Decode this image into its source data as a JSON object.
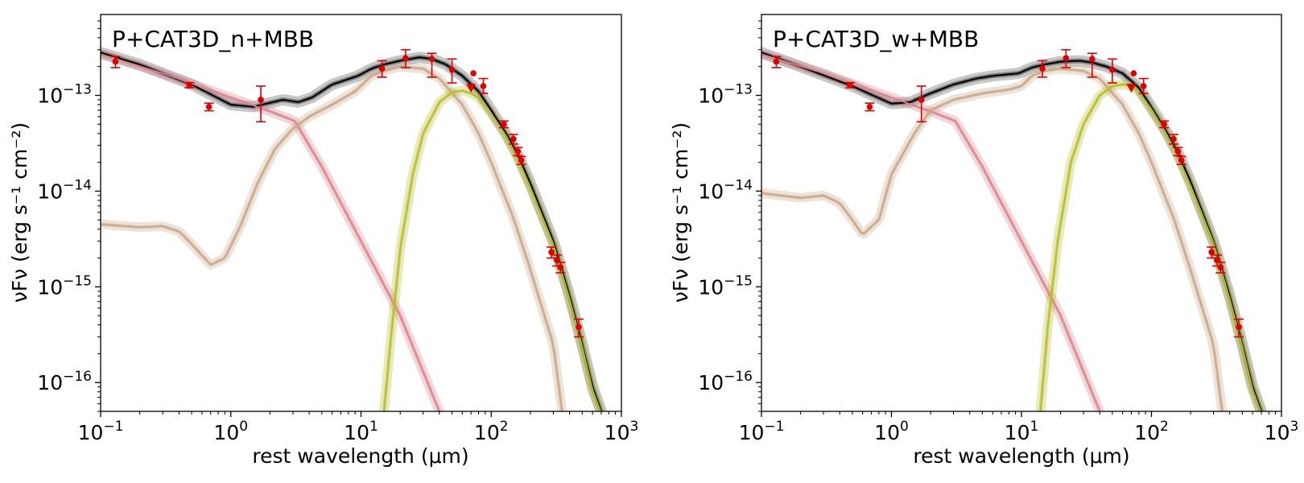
{
  "chart_data": [
    {
      "type": "line",
      "title": "P+CAT3D_n+MBB",
      "xlabel": "rest wavelength (μm)",
      "ylabel": "νFν (erg s⁻¹ cm⁻²)",
      "xscale": "log",
      "yscale": "log",
      "xlim": [
        0.1,
        1000
      ],
      "ylim": [
        5e-17,
        7e-13
      ],
      "grid": false,
      "xticks": [
        {
          "base": "10",
          "exp": "−1",
          "value": 0.1
        },
        {
          "base": "10",
          "exp": "0",
          "value": 1
        },
        {
          "base": "10",
          "exp": "1",
          "value": 10
        },
        {
          "base": "10",
          "exp": "2",
          "value": 100
        },
        {
          "base": "10",
          "exp": "3",
          "value": 1000
        }
      ],
      "yticks": [
        {
          "base": "10",
          "exp": "−16",
          "value": 1e-16
        },
        {
          "base": "10",
          "exp": "−15",
          "value": 1e-15
        },
        {
          "base": "10",
          "exp": "−14",
          "value": 1e-14
        },
        {
          "base": "10",
          "exp": "−13",
          "value": 1e-13
        }
      ],
      "series": [
        {
          "role": "total",
          "color": "#000000",
          "x": [
            0.1,
            0.2,
            0.5,
            1.0,
            1.5,
            2.5,
            3.3,
            4.2,
            6,
            9.5,
            12,
            15,
            20,
            28,
            35,
            45,
            60,
            80,
            100,
            130,
            160,
            200,
            300,
            400,
            500,
            600,
            700
          ],
          "y": [
            2.8e-13,
            2.1e-13,
            1.3e-13,
            8e-14,
            7.6e-14,
            9e-14,
            8.5e-14,
            9.5e-14,
            1.3e-13,
            1.6e-13,
            1.9e-13,
            2.1e-13,
            2.3e-13,
            2.5e-13,
            2.4e-13,
            2.1e-13,
            1.6e-13,
            1.1e-13,
            7e-14,
            4e-14,
            2.4e-14,
            1.2e-14,
            3e-15,
            8e-16,
            2.5e-16,
            9e-17,
            5e-17
          ]
        },
        {
          "role": "agn-disk",
          "color": "#d9878f",
          "x": [
            0.1,
            0.3,
            1,
            2,
            3.1,
            5,
            10,
            20,
            30,
            40
          ],
          "y": [
            2.7e-13,
            1.7e-13,
            9.5e-14,
            6.8e-14,
            5.4e-14,
            1.8e-14,
            3e-15,
            5e-16,
            1.3e-16,
            5e-17
          ]
        },
        {
          "role": "torus",
          "color": "#c8a888",
          "x": [
            0.1,
            0.2,
            0.3,
            0.4,
            0.5,
            0.7,
            0.9,
            1.2,
            1.6,
            2.2,
            3,
            4,
            6,
            9,
            12,
            15,
            20,
            30,
            40,
            60,
            80,
            100,
            150,
            200,
            300,
            350
          ],
          "y": [
            4.5e-15,
            4.2e-15,
            4.3e-15,
            3.8e-15,
            2.8e-15,
            1.7e-15,
            2e-15,
            4.5e-15,
            1.2e-14,
            2.8e-14,
            4.5e-14,
            6e-14,
            8e-14,
            1.1e-13,
            1.6e-13,
            1.8e-13,
            2e-13,
            1.9e-13,
            1.5e-13,
            8e-14,
            4e-14,
            2e-14,
            5e-15,
            1.5e-15,
            2.5e-16,
            5e-17
          ]
        },
        {
          "role": "mbb",
          "color": "#b8be2a",
          "x": [
            15,
            17,
            20,
            25,
            30,
            40,
            50,
            60,
            70,
            80,
            100,
            130,
            160,
            200,
            300,
            400,
            500,
            600,
            700
          ],
          "y": [
            5e-17,
            3e-16,
            2.5e-15,
            1.5e-14,
            4e-14,
            8.5e-14,
            1.08e-13,
            1.12e-13,
            1.05e-13,
            9.5e-14,
            6.5e-14,
            3.8e-14,
            2.2e-14,
            1.1e-14,
            2.8e-15,
            7.5e-16,
            2.4e-16,
            8.5e-17,
            4.8e-17
          ]
        }
      ],
      "points": [
        {
          "x": 0.13,
          "y": 2.25e-13,
          "err": [
            1.95e-13,
            2.55e-13
          ]
        },
        {
          "x": 0.48,
          "y": 1.28e-13,
          "err": [
            1.2e-13,
            1.36e-13
          ]
        },
        {
          "x": 0.68,
          "y": 7.6e-14,
          "err": [
            6.9e-14,
            8.3e-14
          ]
        },
        {
          "x": 1.7,
          "y": 9e-14,
          "err": [
            5.3e-14,
            1.25e-13
          ]
        },
        {
          "x": 14.5,
          "y": 1.9e-13,
          "err": [
            1.55e-13,
            2.3e-13
          ]
        },
        {
          "x": 22,
          "y": 2.45e-13,
          "err": [
            1.95e-13,
            3e-13
          ]
        },
        {
          "x": 35,
          "y": 2.4e-13,
          "err": [
            1.55e-13,
            2.75e-13
          ]
        },
        {
          "x": 50,
          "y": 1.85e-13,
          "err": [
            1.35e-13,
            2.4e-13
          ]
        },
        {
          "x": 73,
          "y": 1.7e-13
        },
        {
          "x": 87,
          "y": 1.25e-13,
          "err": [
            1.05e-13,
            1.5e-13
          ]
        },
        {
          "x": 125,
          "y": 5e-14,
          "err": [
            4.6e-14,
            5.4e-14
          ]
        },
        {
          "x": 148,
          "y": 3.5e-14,
          "err": [
            3.1e-14,
            3.9e-14
          ]
        },
        {
          "x": 160,
          "y": 2.6e-14,
          "err": [
            2.35e-14,
            2.85e-14
          ]
        },
        {
          "x": 170,
          "y": 2.1e-14,
          "err": [
            1.9e-14,
            2.3e-14
          ]
        },
        {
          "x": 290,
          "y": 2.3e-15,
          "err": [
            2e-15,
            2.6e-15
          ]
        },
        {
          "x": 320,
          "y": 1.9e-15,
          "err": [
            1.65e-15,
            2.15e-15
          ]
        },
        {
          "x": 340,
          "y": 1.6e-15,
          "err": [
            1.4e-15,
            1.8e-15
          ]
        },
        {
          "x": 470,
          "y": 3.8e-16,
          "err": [
            3e-16,
            4.6e-16
          ]
        }
      ],
      "upper_limits": [
        {
          "x": 70,
          "y": 1.2e-13
        }
      ]
    },
    {
      "type": "line",
      "title": "P+CAT3D_w+MBB",
      "xlabel": "rest wavelength (μm)",
      "ylabel": "νFν (erg s⁻¹ cm⁻²)",
      "xscale": "log",
      "yscale": "log",
      "xlim": [
        0.1,
        1000
      ],
      "ylim": [
        5e-17,
        7e-13
      ],
      "grid": false,
      "xticks": [
        {
          "base": "10",
          "exp": "−1",
          "value": 0.1
        },
        {
          "base": "10",
          "exp": "0",
          "value": 1
        },
        {
          "base": "10",
          "exp": "1",
          "value": 10
        },
        {
          "base": "10",
          "exp": "2",
          "value": 100
        },
        {
          "base": "10",
          "exp": "3",
          "value": 1000
        }
      ],
      "yticks": [
        {
          "base": "10",
          "exp": "−16",
          "value": 1e-16
        },
        {
          "base": "10",
          "exp": "−15",
          "value": 1e-15
        },
        {
          "base": "10",
          "exp": "−14",
          "value": 1e-14
        },
        {
          "base": "10",
          "exp": "−13",
          "value": 1e-13
        }
      ],
      "series": [
        {
          "role": "total",
          "color": "#000000",
          "x": [
            0.1,
            0.2,
            0.5,
            1.0,
            1.4,
            2.0,
            3.0,
            4.5,
            6,
            9.5,
            12,
            15,
            20,
            28,
            35,
            45,
            60,
            80,
            100,
            130,
            160,
            200,
            300,
            400,
            500,
            600,
            700
          ],
          "y": [
            2.8e-13,
            2e-13,
            1.25e-13,
            8.2e-14,
            8.5e-14,
            1.05e-13,
            1.3e-13,
            1.5e-13,
            1.6e-13,
            1.7e-13,
            1.95e-13,
            2.1e-13,
            2.25e-13,
            2.3e-13,
            2.2e-13,
            2e-13,
            1.7e-13,
            1.2e-13,
            7.5e-14,
            4.2e-14,
            2.5e-14,
            1.25e-14,
            3e-15,
            8e-16,
            2.5e-16,
            9e-17,
            5e-17
          ]
        },
        {
          "role": "agn-disk",
          "color": "#d9878f",
          "x": [
            0.1,
            0.3,
            1,
            2,
            3.1,
            5,
            10,
            20,
            30,
            40
          ],
          "y": [
            2.7e-13,
            1.7e-13,
            9.5e-14,
            6.8e-14,
            5.4e-14,
            1.8e-14,
            3e-15,
            5e-16,
            1.3e-16,
            5e-17
          ]
        },
        {
          "role": "torus",
          "color": "#c8a888",
          "x": [
            0.1,
            0.2,
            0.3,
            0.4,
            0.5,
            0.6,
            0.8,
            1.0,
            1.5,
            2.0,
            3,
            5,
            8,
            10,
            12,
            15,
            20,
            30,
            40,
            60,
            80,
            100,
            150,
            200,
            300,
            350
          ],
          "y": [
            9.5e-15,
            8.5e-15,
            9e-15,
            7.5e-15,
            5e-15,
            3.5e-15,
            5e-15,
            1.5e-14,
            4e-14,
            7e-14,
            9e-14,
            1.05e-13,
            1.15e-13,
            1.25e-13,
            1.6e-13,
            1.8e-13,
            1.9e-13,
            1.8e-13,
            1.5e-13,
            8e-14,
            4e-14,
            2e-14,
            5e-15,
            1.5e-15,
            2.5e-16,
            5e-17
          ]
        },
        {
          "role": "mbb",
          "color": "#b8be2a",
          "x": [
            14,
            16,
            19,
            24,
            30,
            40,
            50,
            60,
            70,
            80,
            100,
            130,
            160,
            200,
            300,
            400,
            500,
            600,
            700
          ],
          "y": [
            5e-17,
            4e-16,
            3e-15,
            2e-14,
            5e-14,
            1e-13,
            1.25e-13,
            1.3e-13,
            1.25e-13,
            1.1e-13,
            7.2e-14,
            4e-14,
            2.3e-14,
            1.15e-14,
            2.9e-15,
            7.5e-16,
            2.4e-16,
            8.5e-17,
            4.8e-17
          ]
        }
      ],
      "points": [
        {
          "x": 0.13,
          "y": 2.25e-13,
          "err": [
            1.95e-13,
            2.55e-13
          ]
        },
        {
          "x": 0.48,
          "y": 1.28e-13,
          "err": [
            1.2e-13,
            1.36e-13
          ]
        },
        {
          "x": 0.68,
          "y": 7.6e-14,
          "err": [
            6.9e-14,
            8.3e-14
          ]
        },
        {
          "x": 1.7,
          "y": 9e-14,
          "err": [
            5.3e-14,
            1.25e-13
          ]
        },
        {
          "x": 14.5,
          "y": 1.9e-13,
          "err": [
            1.55e-13,
            2.3e-13
          ]
        },
        {
          "x": 22,
          "y": 2.45e-13,
          "err": [
            1.95e-13,
            3e-13
          ]
        },
        {
          "x": 35,
          "y": 2.4e-13,
          "err": [
            1.55e-13,
            2.75e-13
          ]
        },
        {
          "x": 50,
          "y": 1.85e-13,
          "err": [
            1.35e-13,
            2.4e-13
          ]
        },
        {
          "x": 73,
          "y": 1.7e-13
        },
        {
          "x": 87,
          "y": 1.25e-13,
          "err": [
            1.05e-13,
            1.5e-13
          ]
        },
        {
          "x": 125,
          "y": 5e-14,
          "err": [
            4.6e-14,
            5.4e-14
          ]
        },
        {
          "x": 148,
          "y": 3.5e-14,
          "err": [
            3.1e-14,
            3.9e-14
          ]
        },
        {
          "x": 160,
          "y": 2.6e-14,
          "err": [
            2.35e-14,
            2.85e-14
          ]
        },
        {
          "x": 170,
          "y": 2.1e-14,
          "err": [
            1.9e-14,
            2.3e-14
          ]
        },
        {
          "x": 290,
          "y": 2.3e-15,
          "err": [
            2e-15,
            2.6e-15
          ]
        },
        {
          "x": 320,
          "y": 1.9e-15,
          "err": [
            1.65e-15,
            2.15e-15
          ]
        },
        {
          "x": 340,
          "y": 1.6e-15,
          "err": [
            1.4e-15,
            1.8e-15
          ]
        },
        {
          "x": 470,
          "y": 3.8e-16,
          "err": [
            3e-16,
            4.6e-16
          ]
        }
      ],
      "upper_limits": [
        {
          "x": 70,
          "y": 1.2e-13
        }
      ]
    }
  ],
  "colors": {
    "data_points": "#dd0000",
    "total": "#000000",
    "agn-disk": "#d9878f",
    "torus": "#c8a888",
    "mbb": "#b8be2a"
  }
}
